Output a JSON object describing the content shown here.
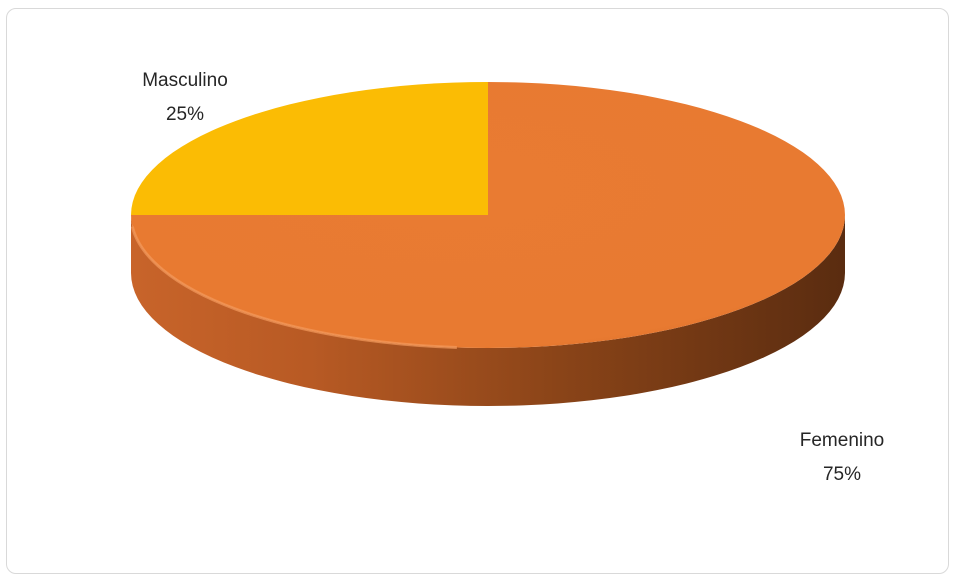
{
  "chart_data": {
    "type": "pie",
    "style": "3d",
    "categories": [
      "Masculino",
      "Femenino"
    ],
    "values": [
      25,
      75
    ],
    "percent_labels": [
      "25%",
      "75%"
    ],
    "colors": [
      "#FBBC04",
      "#E97B32"
    ],
    "legend": "none",
    "title": ""
  }
}
